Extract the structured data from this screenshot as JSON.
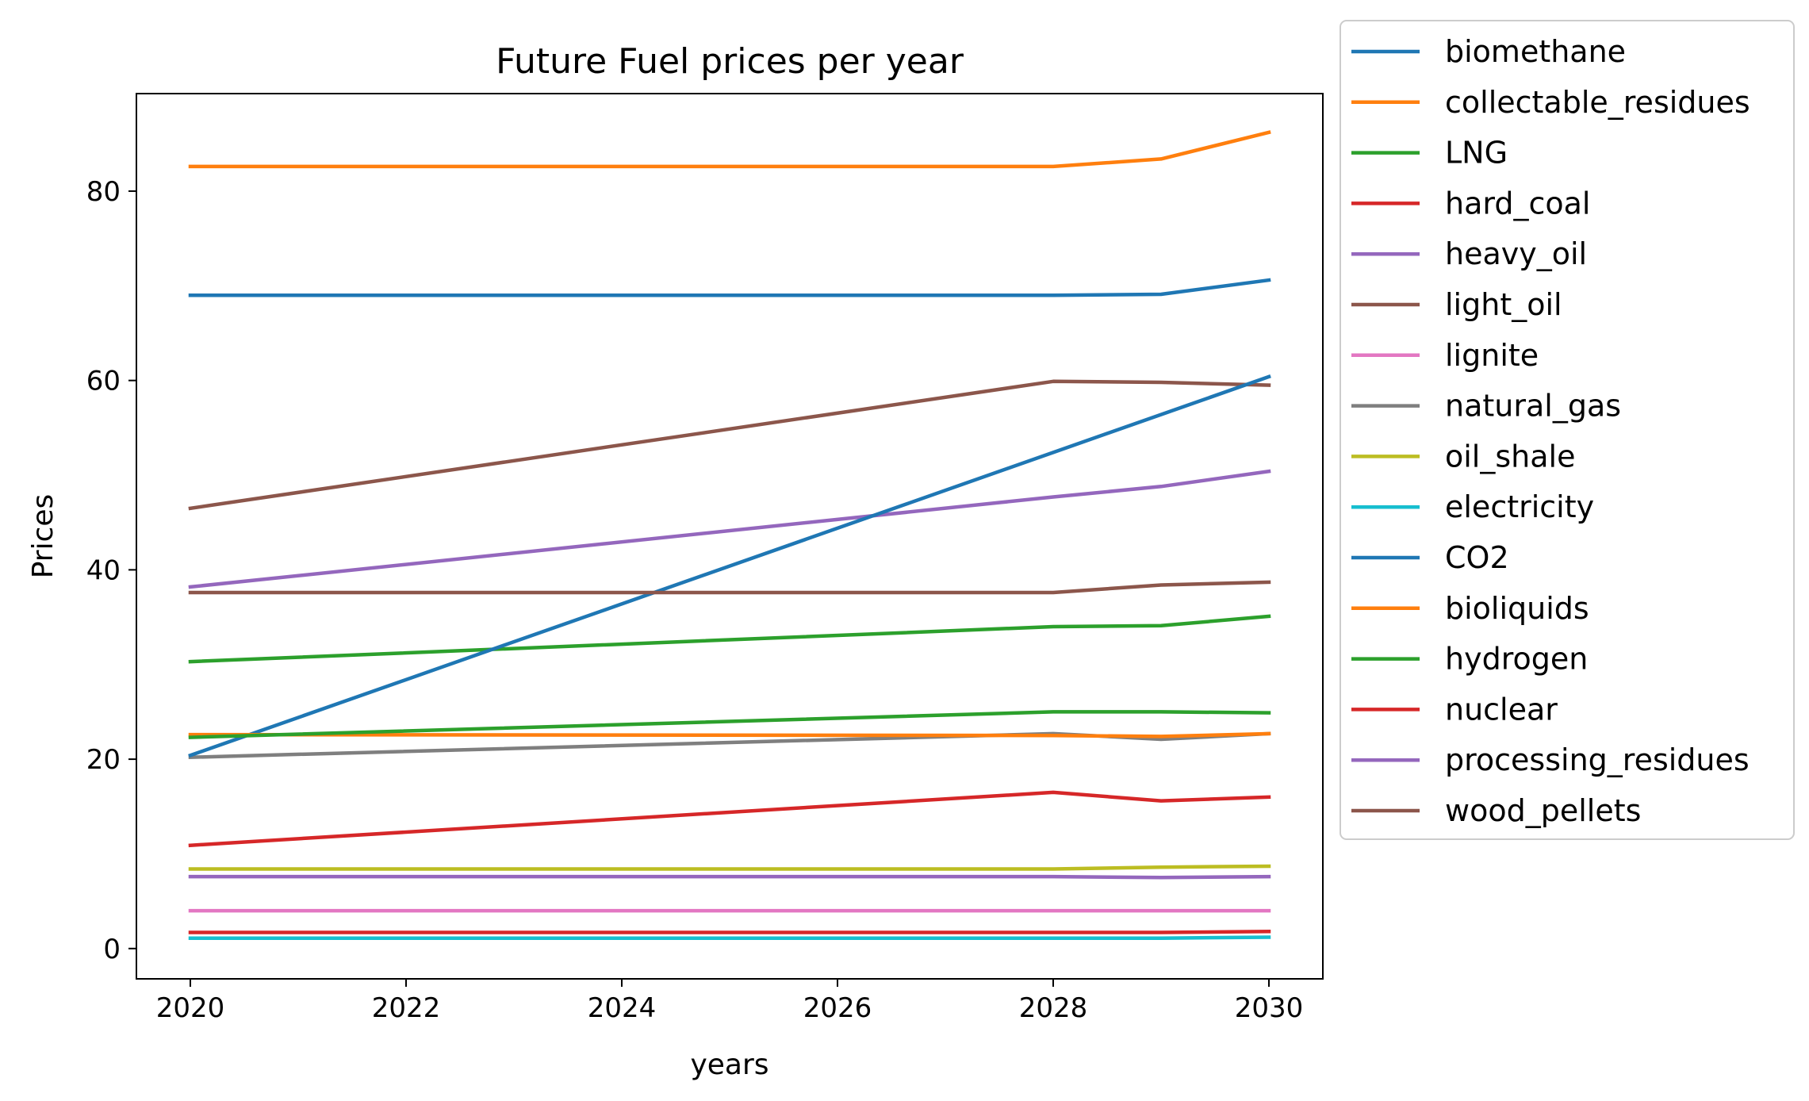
{
  "chart_data": {
    "type": "line",
    "title": "Future Fuel prices per year",
    "xlabel": "years",
    "ylabel": "Prices",
    "xlim": [
      2019.5,
      2030.5
    ],
    "ylim": [
      -3.2,
      90.3
    ],
    "xticks": [
      2020,
      2022,
      2024,
      2026,
      2028,
      2030
    ],
    "yticks": [
      0,
      20,
      40,
      60,
      80
    ],
    "grid": false,
    "legend_position": "outside-right",
    "x": [
      2020,
      2028,
      2029,
      2030
    ],
    "series": [
      {
        "name": "biomethane",
        "color": "#1f77b4",
        "values": [
          69.0,
          69.0,
          69.1,
          70.6
        ]
      },
      {
        "name": "collectable_residues",
        "color": "#ff7f0e",
        "values": [
          82.6,
          82.6,
          83.4,
          86.2
        ]
      },
      {
        "name": "LNG",
        "color": "#2ca02c",
        "values": [
          30.3,
          34.0,
          34.1,
          35.1
        ]
      },
      {
        "name": "hard_coal",
        "color": "#d62728",
        "values": [
          10.9,
          16.5,
          15.6,
          16.0
        ]
      },
      {
        "name": "heavy_oil",
        "color": "#9467bd",
        "values": [
          38.2,
          47.7,
          48.8,
          50.4
        ]
      },
      {
        "name": "light_oil",
        "color": "#8c564b",
        "values": [
          46.5,
          59.9,
          59.8,
          59.5
        ]
      },
      {
        "name": "lignite",
        "color": "#e377c2",
        "values": [
          4.0,
          4.0,
          4.0,
          4.0
        ]
      },
      {
        "name": "natural_gas",
        "color": "#7f7f7f",
        "values": [
          20.2,
          22.7,
          22.1,
          22.7
        ]
      },
      {
        "name": "oil_shale",
        "color": "#bcbd22",
        "values": [
          8.4,
          8.4,
          8.6,
          8.7
        ]
      },
      {
        "name": "electricity",
        "color": "#17becf",
        "values": [
          1.1,
          1.1,
          1.1,
          1.2
        ]
      },
      {
        "name": "CO2",
        "color": "#1f77b4",
        "values": [
          20.4,
          52.4,
          56.4,
          60.4
        ]
      },
      {
        "name": "bioliquids",
        "color": "#ff7f0e",
        "values": [
          22.6,
          22.5,
          22.4,
          22.7
        ]
      },
      {
        "name": "hydrogen",
        "color": "#2ca02c",
        "values": [
          22.3,
          25.0,
          25.0,
          24.9
        ]
      },
      {
        "name": "nuclear",
        "color": "#d62728",
        "values": [
          1.7,
          1.7,
          1.7,
          1.8
        ]
      },
      {
        "name": "processing_residues",
        "color": "#9467bd",
        "values": [
          7.6,
          7.6,
          7.5,
          7.6
        ]
      },
      {
        "name": "wood_pellets",
        "color": "#8c564b",
        "values": [
          37.6,
          37.6,
          38.4,
          38.7
        ]
      }
    ]
  }
}
